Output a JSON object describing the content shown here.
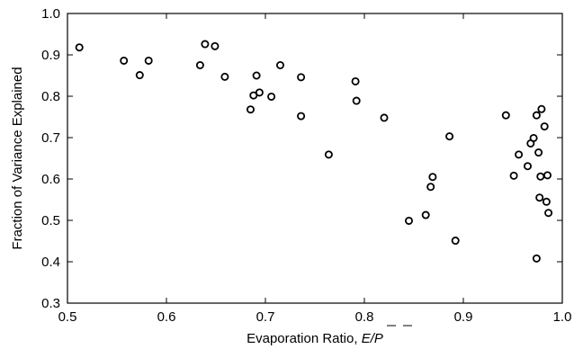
{
  "chart_data": {
    "type": "scatter",
    "title": "",
    "xlabel": "Evaporation Ratio, ",
    "xlabel_math": "E/P",
    "ylabel": "Fraction of Variance Explained",
    "xlim": [
      0.5,
      1.0
    ],
    "ylim": [
      0.3,
      1.0
    ],
    "xticks": [
      "0.5",
      "0.6",
      "0.7",
      "0.8",
      "0.9",
      "1.0"
    ],
    "yticks": [
      "0.3",
      "0.4",
      "0.5",
      "0.6",
      "0.7",
      "0.8",
      "0.9",
      "1.0"
    ],
    "grid": false,
    "marker": "open-circle",
    "series": [
      {
        "points": [
          [
            0.512,
            0.918
          ],
          [
            0.557,
            0.886
          ],
          [
            0.573,
            0.851
          ],
          [
            0.582,
            0.886
          ],
          [
            0.634,
            0.875
          ],
          [
            0.639,
            0.926
          ],
          [
            0.649,
            0.921
          ],
          [
            0.659,
            0.847
          ],
          [
            0.685,
            0.768
          ],
          [
            0.688,
            0.802
          ],
          [
            0.691,
            0.85
          ],
          [
            0.694,
            0.809
          ],
          [
            0.706,
            0.799
          ],
          [
            0.715,
            0.875
          ],
          [
            0.736,
            0.846
          ],
          [
            0.736,
            0.752
          ],
          [
            0.764,
            0.659
          ],
          [
            0.791,
            0.836
          ],
          [
            0.792,
            0.789
          ],
          [
            0.82,
            0.748
          ],
          [
            0.845,
            0.499
          ],
          [
            0.862,
            0.513
          ],
          [
            0.867,
            0.581
          ],
          [
            0.869,
            0.605
          ],
          [
            0.886,
            0.703
          ],
          [
            0.892,
            0.451
          ],
          [
            0.943,
            0.754
          ],
          [
            0.951,
            0.608
          ],
          [
            0.956,
            0.659
          ],
          [
            0.965,
            0.631
          ],
          [
            0.968,
            0.686
          ],
          [
            0.971,
            0.699
          ],
          [
            0.974,
            0.754
          ],
          [
            0.974,
            0.408
          ],
          [
            0.976,
            0.664
          ],
          [
            0.977,
            0.555
          ],
          [
            0.978,
            0.606
          ],
          [
            0.979,
            0.769
          ],
          [
            0.982,
            0.727
          ],
          [
            0.984,
            0.545
          ],
          [
            0.985,
            0.609
          ],
          [
            0.986,
            0.518
          ]
        ]
      }
    ]
  }
}
